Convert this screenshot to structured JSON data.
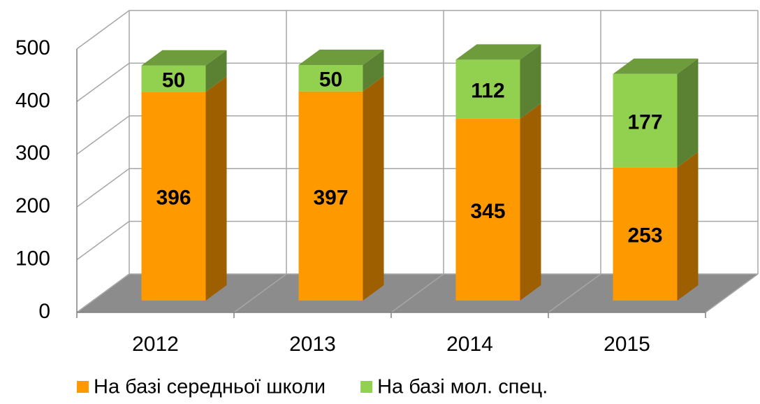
{
  "chart_data": {
    "type": "bar3d_stacked",
    "categories": [
      "2012",
      "2013",
      "2014",
      "2015"
    ],
    "series": [
      {
        "name": "На базі середньої школи",
        "color": "#ff9900",
        "values": [
          396,
          397,
          345,
          253
        ]
      },
      {
        "name": "На базі мол. спец.",
        "color": "#92d050",
        "values": [
          50,
          50,
          112,
          177
        ]
      }
    ],
    "ylim": [
      0,
      500
    ],
    "yticks": [
      0,
      100,
      200,
      300,
      400,
      500
    ],
    "grid": true,
    "legend": "bottom"
  }
}
